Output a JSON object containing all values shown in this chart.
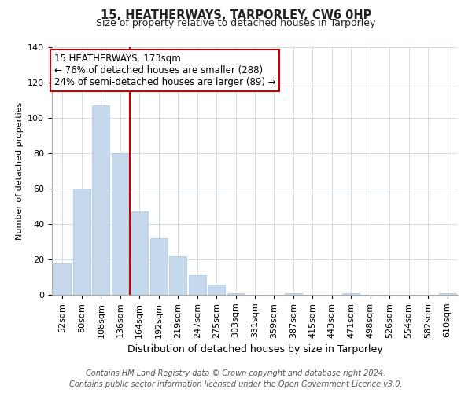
{
  "title": "15, HEATHERWAYS, TARPORLEY, CW6 0HP",
  "subtitle": "Size of property relative to detached houses in Tarporley",
  "xlabel": "Distribution of detached houses by size in Tarporley",
  "ylabel": "Number of detached properties",
  "bar_labels": [
    "52sqm",
    "80sqm",
    "108sqm",
    "136sqm",
    "164sqm",
    "192sqm",
    "219sqm",
    "247sqm",
    "275sqm",
    "303sqm",
    "331sqm",
    "359sqm",
    "387sqm",
    "415sqm",
    "443sqm",
    "471sqm",
    "498sqm",
    "526sqm",
    "554sqm",
    "582sqm",
    "610sqm"
  ],
  "bar_values": [
    18,
    60,
    107,
    80,
    47,
    32,
    22,
    11,
    6,
    1,
    0,
    0,
    1,
    0,
    0,
    1,
    0,
    0,
    0,
    0,
    1
  ],
  "bar_color": "#c5d8ec",
  "bar_edge_color": "#a8c4e0",
  "vline_color": "#cc0000",
  "vline_x_index": 4,
  "annotation_title": "15 HEATHERWAYS: 173sqm",
  "annotation_line1": "← 76% of detached houses are smaller (288)",
  "annotation_line2": "24% of semi-detached houses are larger (89) →",
  "annotation_box_facecolor": "#ffffff",
  "annotation_box_edgecolor": "#cc0000",
  "ylim": [
    0,
    140
  ],
  "yticks": [
    0,
    20,
    40,
    60,
    80,
    100,
    120,
    140
  ],
  "grid_color": "#d0dce8",
  "footer1": "Contains HM Land Registry data © Crown copyright and database right 2024.",
  "footer2": "Contains public sector information licensed under the Open Government Licence v3.0.",
  "title_fontsize": 10.5,
  "subtitle_fontsize": 9,
  "ylabel_fontsize": 8,
  "xlabel_fontsize": 9,
  "tick_fontsize": 8,
  "annotation_fontsize": 8.5,
  "footer_fontsize": 7
}
